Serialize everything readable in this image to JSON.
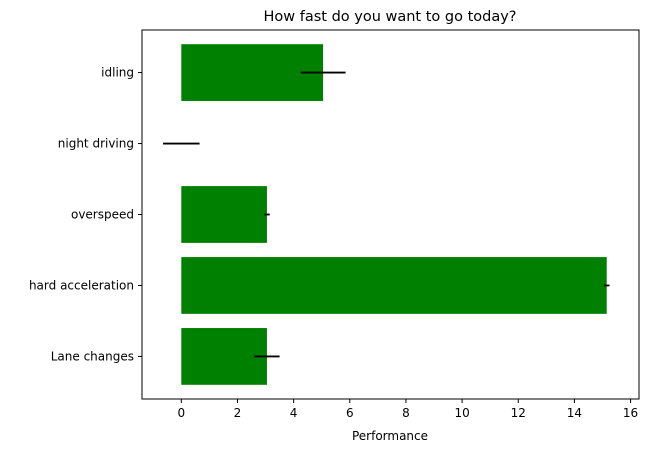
{
  "chart_data": {
    "type": "bar",
    "orientation": "horizontal",
    "title": "How fast do you want to go today?",
    "xlabel": "Performance",
    "ylabel": "",
    "categories": [
      "Lane changes",
      "hard acceleration",
      "overspeed",
      "night driving",
      "idling"
    ],
    "values": [
      3.05,
      15.15,
      3.05,
      0,
      5.05
    ],
    "errors": [
      0.45,
      0.1,
      0.1,
      0.65,
      0.8
    ],
    "xlim": [
      -1.4,
      16.3
    ],
    "xticks": [
      0,
      2,
      4,
      6,
      8,
      10,
      12,
      14,
      16
    ],
    "bar_color": "#008000",
    "error_color": "#000000",
    "grid": false,
    "legend": false
  }
}
